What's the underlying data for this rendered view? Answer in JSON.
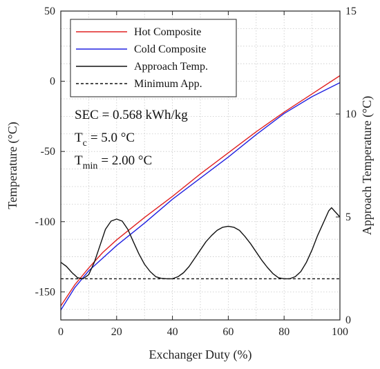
{
  "chart_data": {
    "type": "line",
    "xlabel": "Exchanger Duty (%)",
    "ylabel": "Temperature (°C)",
    "y2label": "Approach Temperature (°C)",
    "xlim": [
      0,
      100
    ],
    "ylim": [
      -170,
      50
    ],
    "y2lim": [
      0,
      15
    ],
    "x_ticks": [
      0,
      20,
      40,
      60,
      80,
      100
    ],
    "y_ticks": [
      -150,
      -100,
      -50,
      0,
      50
    ],
    "y2_ticks": [
      0,
      5,
      10,
      15
    ],
    "x_tick_labels": [
      "0",
      "20",
      "40",
      "60",
      "80",
      "100"
    ],
    "y_tick_labels": [
      "-150",
      "-100",
      "-50",
      "0",
      "50"
    ],
    "y2_tick_labels": [
      "0",
      "5",
      "10",
      "15"
    ],
    "grid": true,
    "legend_position": "top-left",
    "series": [
      {
        "name": "Hot Composite",
        "axis": "left",
        "color": "#e02020",
        "dash": "solid",
        "x": [
          0,
          5,
          10,
          15,
          20,
          30,
          40,
          50,
          60,
          70,
          80,
          90,
          100
        ],
        "y": [
          -160,
          -145,
          -133,
          -122,
          -113,
          -97,
          -82,
          -66,
          -51,
          -36,
          -22,
          -9,
          4
        ]
      },
      {
        "name": "Cold Composite",
        "axis": "left",
        "color": "#2020e0",
        "dash": "solid",
        "x": [
          0,
          5,
          10,
          15,
          20,
          30,
          40,
          50,
          60,
          70,
          80,
          90,
          100
        ],
        "y": [
          -163,
          -147,
          -135,
          -126,
          -117,
          -101,
          -84,
          -69,
          -54,
          -38,
          -23,
          -11,
          -1
        ]
      },
      {
        "name": "Approach Temp.",
        "axis": "right",
        "color": "#111111",
        "dash": "solid",
        "x": [
          0,
          2,
          4,
          6,
          8,
          10,
          12,
          14,
          16,
          18,
          20,
          22,
          24,
          26,
          28,
          30,
          32,
          34,
          36,
          38,
          40,
          42,
          44,
          46,
          48,
          50,
          52,
          54,
          56,
          58,
          60,
          62,
          64,
          66,
          68,
          70,
          72,
          74,
          76,
          78,
          80,
          82,
          84,
          86,
          88,
          90,
          92,
          94,
          96,
          97,
          98,
          100
        ],
        "y": [
          2.8,
          2.6,
          2.3,
          2.05,
          2.0,
          2.2,
          2.8,
          3.6,
          4.4,
          4.8,
          4.9,
          4.8,
          4.4,
          3.8,
          3.2,
          2.7,
          2.35,
          2.1,
          2.02,
          2.0,
          2.0,
          2.1,
          2.3,
          2.6,
          3.0,
          3.4,
          3.8,
          4.1,
          4.35,
          4.5,
          4.55,
          4.5,
          4.35,
          4.05,
          3.7,
          3.3,
          2.9,
          2.55,
          2.25,
          2.05,
          2.0,
          2.0,
          2.1,
          2.35,
          2.8,
          3.4,
          4.1,
          4.7,
          5.3,
          5.45,
          5.3,
          5.0
        ]
      },
      {
        "name": "Minimum App.",
        "axis": "right",
        "color": "#111111",
        "dash": "dashed",
        "x": [
          0,
          100
        ],
        "y": [
          2.0,
          2.0
        ]
      }
    ],
    "annotations": {
      "sec": "SEC = 0.568 kWh/kg",
      "tc_base": "T",
      "tc_sub": "c",
      "tc_val": "=  5.0 °C",
      "tmin_base": "T",
      "tmin_sub": "min",
      "tmin_val": "=  2.00 °C"
    }
  }
}
